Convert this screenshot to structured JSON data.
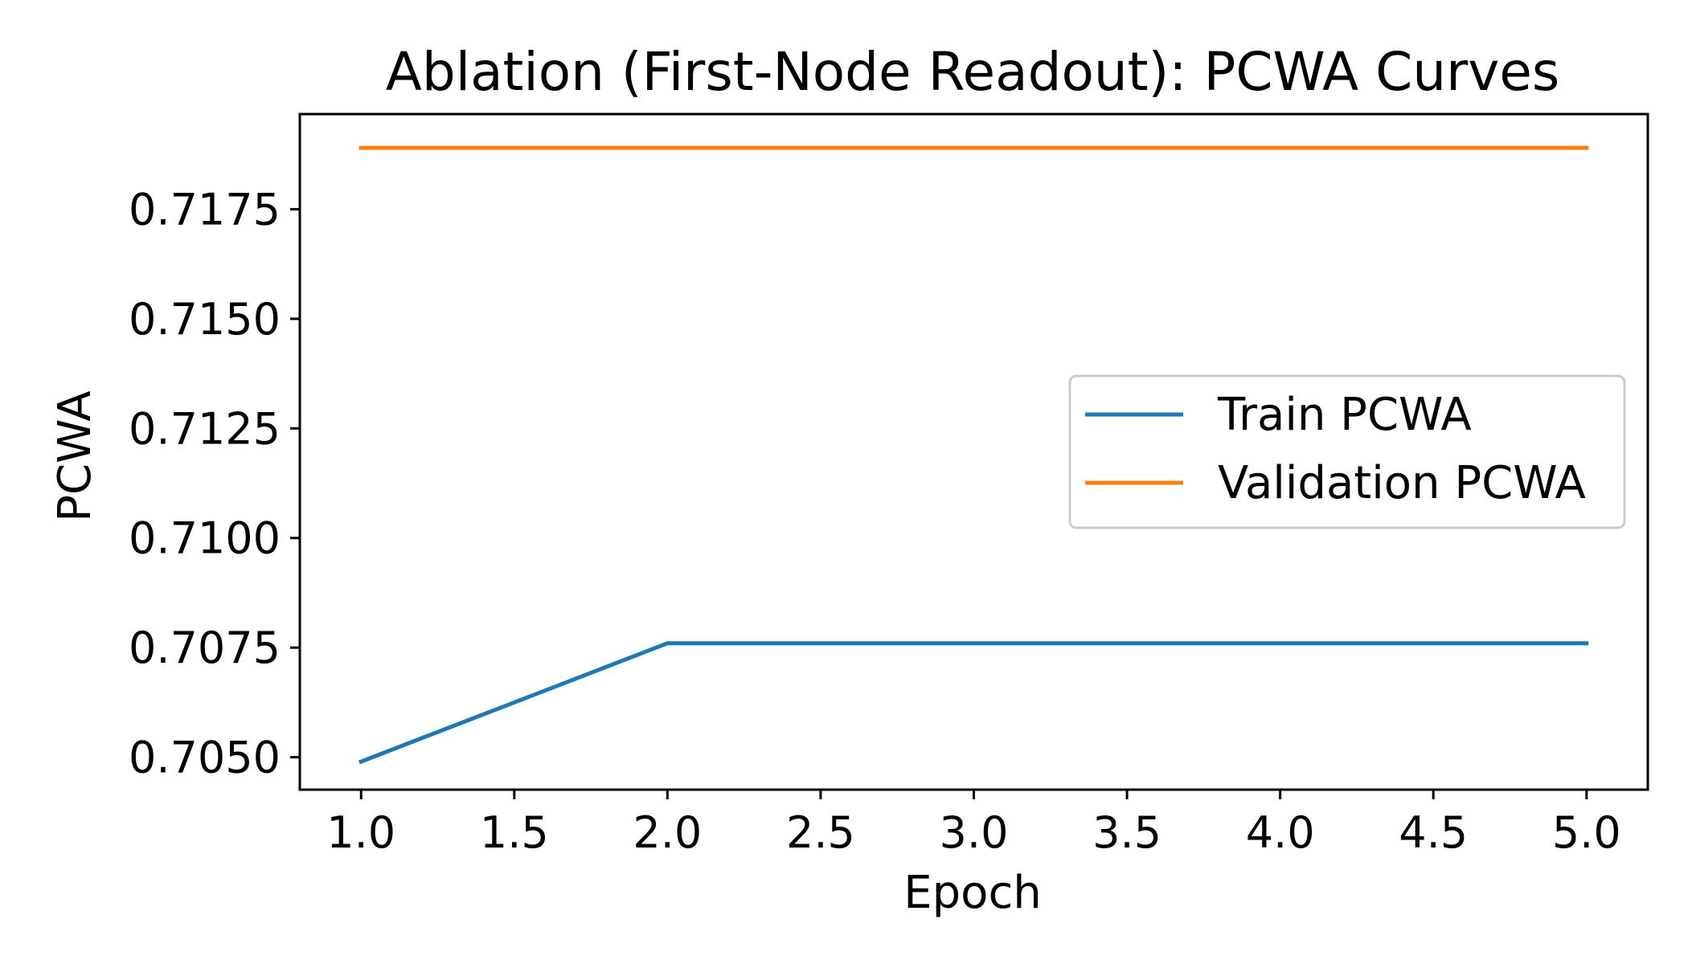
{
  "chart_data": {
    "type": "line",
    "title": "Ablation (First-Node Readout): PCWA Curves",
    "xlabel": "Epoch",
    "ylabel": "PCWA",
    "x": [
      1,
      2,
      3,
      4,
      5
    ],
    "xlim": [
      0.8,
      5.2
    ],
    "ylim": [
      0.70426,
      0.71967
    ],
    "xticks": [
      1.0,
      1.5,
      2.0,
      2.5,
      3.0,
      3.5,
      4.0,
      4.5,
      5.0
    ],
    "xtick_labels": [
      "1.0",
      "1.5",
      "2.0",
      "2.5",
      "3.0",
      "3.5",
      "4.0",
      "4.5",
      "5.0"
    ],
    "yticks": [
      0.705,
      0.7075,
      0.71,
      0.7125,
      0.715,
      0.7175
    ],
    "ytick_labels": [
      "0.7050",
      "0.7075",
      "0.7100",
      "0.7125",
      "0.7150",
      "0.7175"
    ],
    "grid": false,
    "legend_position": "center-right",
    "series": [
      {
        "name": "Train PCWA",
        "color": "#1f77b4",
        "values": [
          0.7049,
          0.7076,
          0.7076,
          0.7076,
          0.7076
        ]
      },
      {
        "name": "Validation PCWA",
        "color": "#ff7f0e",
        "values": [
          0.7189,
          0.7189,
          0.7189,
          0.7189,
          0.7189
        ]
      }
    ]
  }
}
